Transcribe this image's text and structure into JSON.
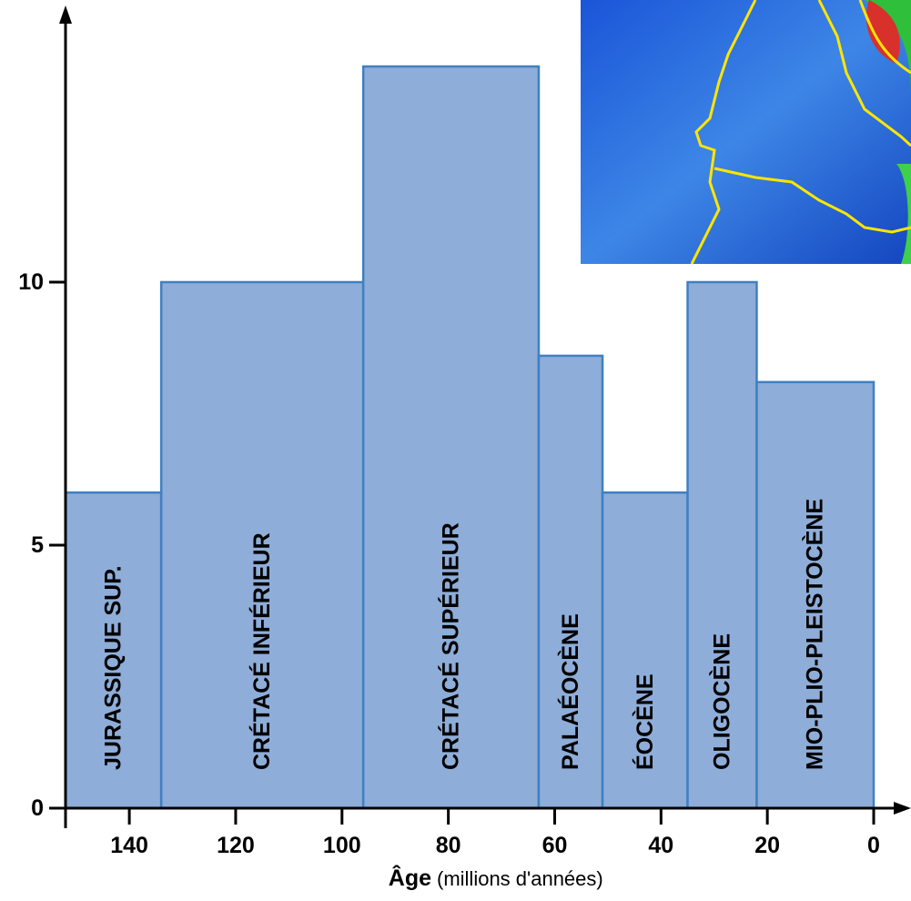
{
  "chart_data": {
    "type": "histogram",
    "bins": [
      152,
      134,
      96,
      63,
      51,
      35,
      22,
      0
    ],
    "values": [
      6,
      10,
      14.1,
      8.6,
      6,
      10,
      8.1
    ],
    "categories": [
      "JURASSIQUE SUP.",
      "CRÉTACÉ INFÉRIEUR",
      "CRÉTACÉ SUPÉRIEUR",
      "PALAÉOCÈNE",
      "ÉOCÈNE",
      "OLIGOCÈNE",
      "MIO-PLIO-PLEISTOCÈNE"
    ],
    "color": "#8eadd8",
    "edge_color": "#3f80c2",
    "xlim": [
      152,
      0
    ],
    "xticks": [
      140,
      120,
      100,
      80,
      60,
      40,
      20,
      0
    ],
    "ylim": [
      0,
      15.2
    ],
    "yticks": [
      0,
      5,
      10
    ],
    "x_label": "Âge",
    "x_label_unit": "(millions d'années)"
  }
}
